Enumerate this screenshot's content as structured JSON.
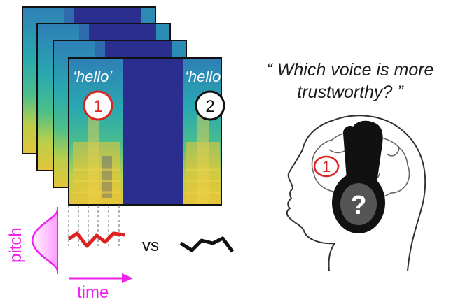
{
  "colors": {
    "accent_magenta": "#ee22ee",
    "accent_red": "#dd2222",
    "spectrogram_blue": "#2a2f8f",
    "spectrogram_yellow": "#e8c83a"
  },
  "spectrogram": {
    "stack_count": 4,
    "word_left": "‘hello’",
    "word_right": "‘hello’",
    "badge_left": "1",
    "badge_right": "2"
  },
  "axes": {
    "pitch_label": "pitch",
    "time_label": "time"
  },
  "comparison": {
    "vs_label": "vs"
  },
  "question": {
    "line1": "“ Which voice is more",
    "line2": "trustworthy? ”"
  },
  "listener": {
    "brain_badge": "1",
    "headphone_mark": "?"
  },
  "icons": [
    "headphones-icon",
    "head-profile-icon",
    "brain-icon"
  ]
}
